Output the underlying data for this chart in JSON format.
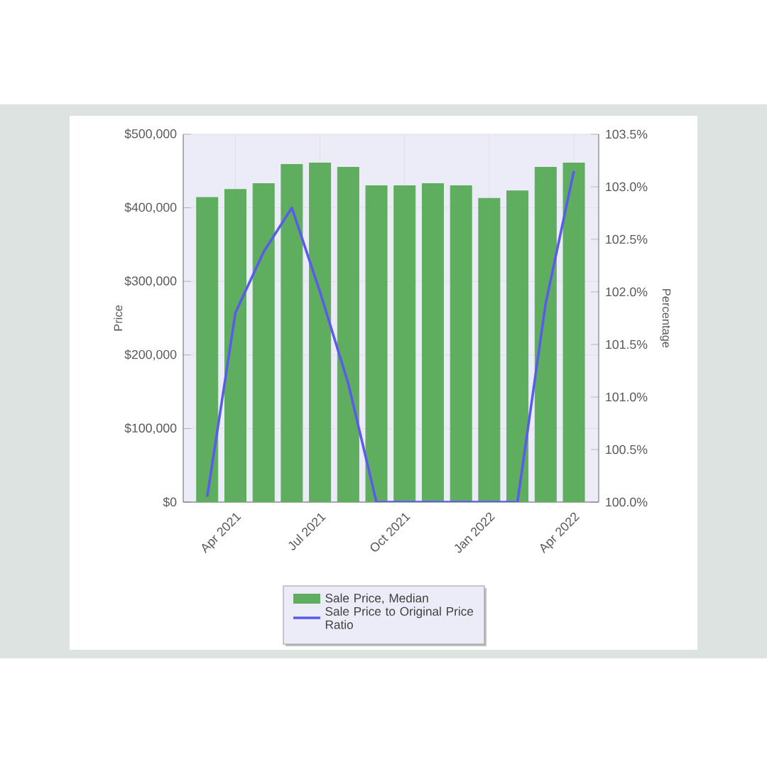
{
  "chart_data": {
    "type": "bar",
    "categories": [
      null,
      "Apr 2021",
      null,
      null,
      "Jul 2021",
      null,
      null,
      "Oct 2021",
      null,
      null,
      "Jan 2022",
      null,
      null,
      "Apr 2022"
    ],
    "series": [
      {
        "name": "Sale Price, Median",
        "color": "#5fae5f",
        "values": [
          414000,
          425000,
          433000,
          459000,
          461000,
          455000,
          430000,
          430000,
          433000,
          430000,
          413000,
          423000,
          455000,
          461000
        ]
      },
      {
        "name": "Sale Price to Original Price Ratio",
        "type": "line",
        "axis": "y2",
        "color": "#5a5aee",
        "values": [
          100.05,
          101.8,
          102.38,
          102.8,
          102.0,
          101.13,
          100.0,
          100.0,
          100.0,
          100.0,
          100.0,
          100.0,
          101.89,
          103.15
        ]
      }
    ],
    "ylabel": "Price",
    "y2label": "Percentage",
    "ylim": [
      0,
      500000
    ],
    "yticks": [
      {
        "value": 0,
        "label": "$0"
      },
      {
        "value": 100000,
        "label": "$100,000"
      },
      {
        "value": 200000,
        "label": "$200,000"
      },
      {
        "value": 300000,
        "label": "$300,000"
      },
      {
        "value": 400000,
        "label": "$400,000"
      },
      {
        "value": 500000,
        "label": "$500,000"
      }
    ],
    "y2lim": [
      100,
      103.5
    ],
    "y2ticks": [
      {
        "value": 100,
        "label": "100.0%"
      },
      {
        "value": 100.5,
        "label": "100.5%"
      },
      {
        "value": 101,
        "label": "101.0%"
      },
      {
        "value": 101.5,
        "label": "101.5%"
      },
      {
        "value": 102,
        "label": "102.0%"
      },
      {
        "value": 102.5,
        "label": "102.5%"
      },
      {
        "value": 103,
        "label": "103.0%"
      },
      {
        "value": 103.5,
        "label": "103.5%"
      }
    ],
    "grid": true,
    "legend": "bottom",
    "marker": "none",
    "line_style": "solid"
  }
}
